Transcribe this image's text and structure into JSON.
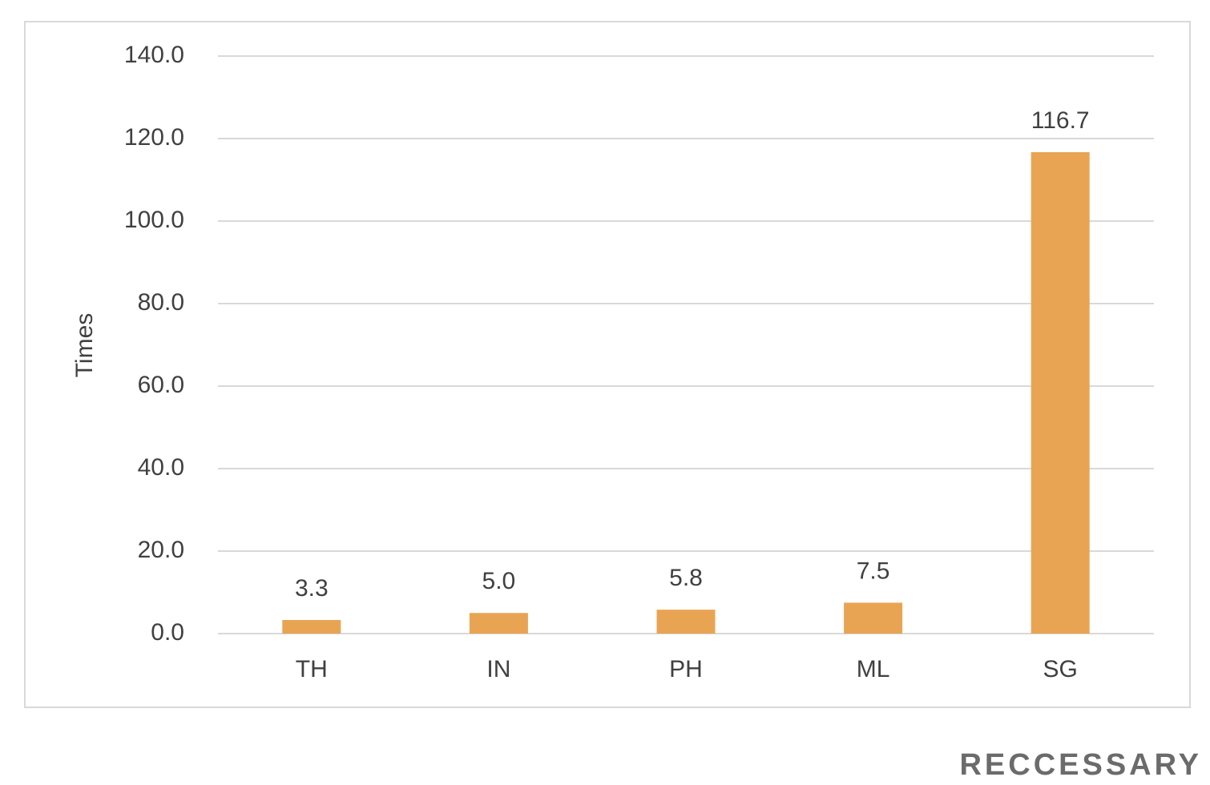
{
  "chart_data": {
    "type": "bar",
    "y_label": "Times",
    "categories": [
      "TH",
      "IN",
      "PH",
      "ML",
      "SG"
    ],
    "values": [
      3.3,
      5.0,
      5.8,
      7.5,
      116.7
    ],
    "value_labels": [
      "3.3",
      "5.0",
      "5.8",
      "7.5",
      "116.7"
    ],
    "color": "#e9a453",
    "ylim": [
      0,
      140
    ],
    "yticks": [
      {
        "value": 0,
        "label": "0.0"
      },
      {
        "value": 20,
        "label": "20.0"
      },
      {
        "value": 40,
        "label": "40.0"
      },
      {
        "value": 60,
        "label": "60.0"
      },
      {
        "value": 80,
        "label": "80.0"
      },
      {
        "value": 100,
        "label": "100.0"
      },
      {
        "value": 120,
        "label": "120.0"
      },
      {
        "value": 140,
        "label": "140.0"
      }
    ],
    "grid": true,
    "branding": "RECCESSARY"
  }
}
